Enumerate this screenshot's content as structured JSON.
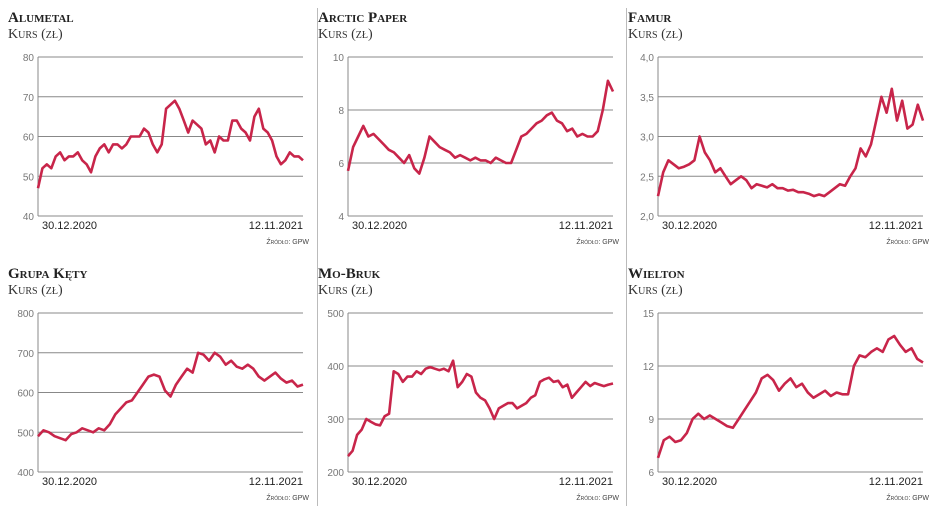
{
  "chart_data": [
    {
      "type": "line",
      "title": "Alumetal",
      "ylabel": "Kurs (zł)",
      "ylim": [
        40,
        80
      ],
      "yticks": [
        40,
        50,
        60,
        70,
        80
      ],
      "x_start": "30.12.2020",
      "x_end": "12.11.2021",
      "source": "Źródło: GPW",
      "color": "#c8254a",
      "values": [
        47,
        52,
        53,
        52,
        55,
        56,
        54,
        55,
        55,
        56,
        54,
        53,
        51,
        55,
        57,
        58,
        56,
        58,
        58,
        57,
        58,
        60,
        60,
        60,
        62,
        61,
        58,
        56,
        58,
        67,
        68,
        69,
        67,
        64,
        61,
        64,
        63,
        62,
        58,
        59,
        56,
        60,
        59,
        59,
        64,
        64,
        62,
        61,
        59,
        65,
        67,
        62,
        61,
        59,
        55,
        53,
        54,
        56,
        55,
        55,
        54
      ]
    },
    {
      "type": "line",
      "title": "Arctic Paper",
      "ylabel": "Kurs (zł)",
      "ylim": [
        4,
        10
      ],
      "yticks": [
        4,
        6,
        8,
        10
      ],
      "x_start": "30.12.2020",
      "x_end": "12.11.2021",
      "source": "Źródło: GPW",
      "color": "#c8254a",
      "values": [
        5.7,
        6.6,
        7.0,
        7.4,
        7.0,
        7.1,
        6.9,
        6.7,
        6.5,
        6.4,
        6.2,
        6.0,
        6.3,
        5.8,
        5.6,
        6.2,
        7.0,
        6.8,
        6.6,
        6.5,
        6.4,
        6.2,
        6.3,
        6.2,
        6.1,
        6.2,
        6.1,
        6.1,
        6.0,
        6.2,
        6.1,
        6.0,
        6.0,
        6.5,
        7.0,
        7.1,
        7.3,
        7.5,
        7.6,
        7.8,
        7.9,
        7.6,
        7.5,
        7.2,
        7.3,
        7.0,
        7.1,
        7.0,
        7.0,
        7.2,
        8.0,
        9.1,
        8.7
      ]
    },
    {
      "type": "line",
      "title": "Famur",
      "ylabel": "Kurs (zł)",
      "ylim": [
        2,
        4
      ],
      "yticks": [
        "2,0",
        "2,5",
        "3,0",
        "3,5",
        "4,0"
      ],
      "x_start": "30.12.2020",
      "x_end": "12.11.2021",
      "source": "Źródło: GPW",
      "color": "#c8254a",
      "values": [
        2.25,
        2.55,
        2.7,
        2.65,
        2.6,
        2.62,
        2.65,
        2.7,
        3.0,
        2.8,
        2.7,
        2.55,
        2.6,
        2.5,
        2.4,
        2.45,
        2.5,
        2.45,
        2.35,
        2.4,
        2.38,
        2.36,
        2.4,
        2.35,
        2.35,
        2.32,
        2.33,
        2.3,
        2.3,
        2.28,
        2.25,
        2.27,
        2.25,
        2.3,
        2.35,
        2.4,
        2.38,
        2.5,
        2.6,
        2.85,
        2.75,
        2.9,
        3.2,
        3.5,
        3.3,
        3.6,
        3.2,
        3.45,
        3.1,
        3.15,
        3.4,
        3.2
      ]
    },
    {
      "type": "line",
      "title": "Grupa Kęty",
      "ylabel": "Kurs (zł)",
      "ylim": [
        400,
        800
      ],
      "yticks": [
        400,
        500,
        600,
        700,
        800
      ],
      "x_start": "30.12.2020",
      "x_end": "12.11.2021",
      "source": "Źródło: GPW",
      "color": "#c8254a",
      "values": [
        490,
        505,
        500,
        490,
        485,
        480,
        495,
        500,
        510,
        505,
        500,
        510,
        505,
        520,
        545,
        560,
        575,
        580,
        600,
        620,
        640,
        645,
        640,
        605,
        590,
        620,
        640,
        660,
        650,
        700,
        695,
        680,
        700,
        690,
        670,
        680,
        665,
        660,
        670,
        660,
        640,
        630,
        640,
        650,
        635,
        625,
        630,
        615,
        620
      ]
    },
    {
      "type": "line",
      "title": "Mo-Bruk",
      "ylabel": "Kurs (zł)",
      "ylim": [
        200,
        500
      ],
      "yticks": [
        200,
        300,
        400,
        500
      ],
      "x_start": "30.12.2020",
      "x_end": "12.11.2021",
      "source": "Źródło: GPW",
      "color": "#c8254a",
      "values": [
        230,
        240,
        270,
        280,
        300,
        295,
        290,
        288,
        305,
        310,
        390,
        385,
        370,
        380,
        380,
        390,
        385,
        395,
        398,
        395,
        392,
        395,
        390,
        410,
        360,
        370,
        385,
        380,
        350,
        340,
        335,
        320,
        300,
        320,
        325,
        330,
        330,
        320,
        325,
        330,
        340,
        345,
        370,
        375,
        378,
        370,
        372,
        360,
        365,
        340,
        350,
        360,
        370,
        362,
        368,
        365,
        362,
        365,
        367
      ]
    },
    {
      "type": "line",
      "title": "Wielton",
      "ylabel": "Kurs (zł)",
      "ylim": [
        6,
        15
      ],
      "yticks": [
        6,
        9,
        12,
        15
      ],
      "x_start": "30.12.2020",
      "x_end": "12.11.2021",
      "source": "Źródło: GPW",
      "color": "#c8254a",
      "values": [
        6.8,
        7.8,
        8.0,
        7.7,
        7.8,
        8.2,
        9.0,
        9.3,
        9.0,
        9.2,
        9.0,
        8.8,
        8.6,
        8.5,
        9.0,
        9.5,
        10.0,
        10.5,
        11.3,
        11.5,
        11.2,
        10.6,
        11.0,
        11.3,
        10.8,
        11.0,
        10.5,
        10.2,
        10.4,
        10.6,
        10.3,
        10.5,
        10.4,
        10.4,
        12.0,
        12.6,
        12.5,
        12.8,
        13.0,
        12.8,
        13.5,
        13.7,
        13.2,
        12.8,
        13.0,
        12.4,
        12.2
      ]
    }
  ]
}
